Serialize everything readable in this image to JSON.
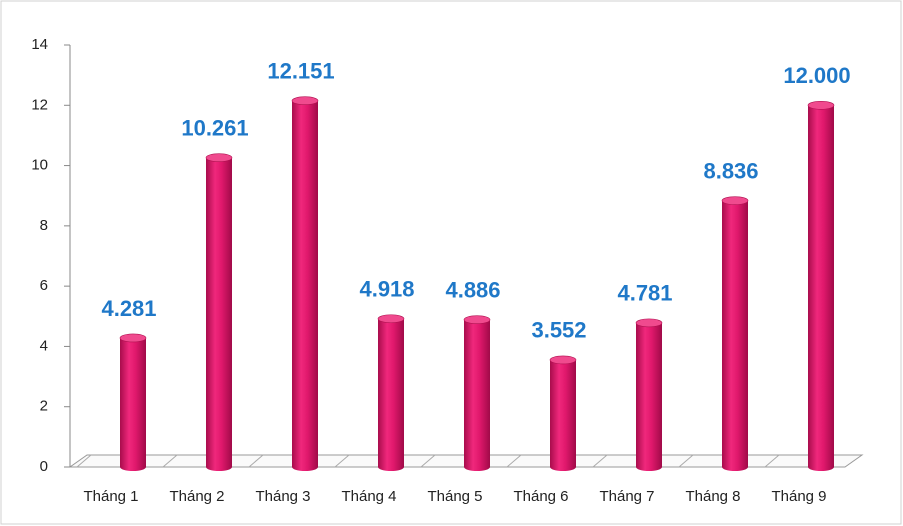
{
  "chart_data": {
    "type": "bar",
    "categories": [
      "Tháng 1",
      "Tháng 2",
      "Tháng 3",
      "Tháng 4",
      "Tháng 5",
      "Tháng 6",
      "Tháng 7",
      "Tháng 8",
      "Tháng 9"
    ],
    "values": [
      4.281,
      10.261,
      12.151,
      4.918,
      4.886,
      3.552,
      4.781,
      8.836,
      12
    ],
    "value_labels": [
      "4.281",
      "10.261",
      "12.151",
      "4.918",
      "4.886",
      "3.552",
      "4.781",
      "8.836",
      "12.000"
    ],
    "color": "#e0186c",
    "ylim": [
      0,
      14
    ],
    "yticks": [
      0,
      2,
      4,
      6,
      8,
      10,
      12,
      14
    ]
  }
}
